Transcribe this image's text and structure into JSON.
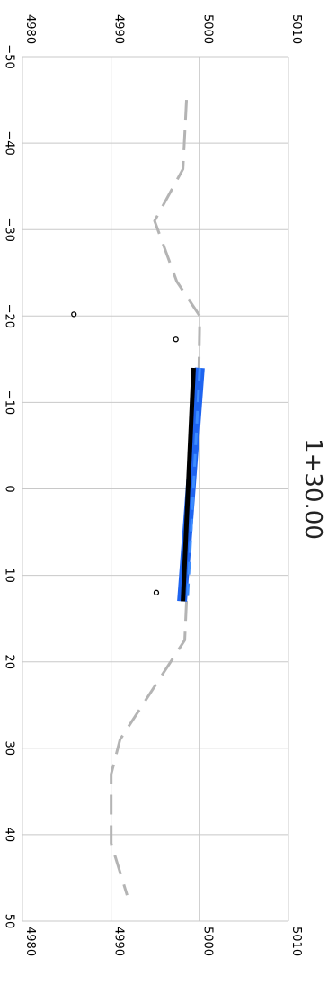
{
  "chart_data": {
    "type": "line",
    "title": "1+30.00",
    "xlabel": "",
    "ylabel": "",
    "xlim": [
      -50,
      50
    ],
    "ylim": [
      4980,
      5010
    ],
    "grid": true,
    "x_ticks": [
      "−50",
      "−40",
      "−30",
      "−20",
      "−10",
      "0",
      "10",
      "20",
      "30",
      "40",
      "50"
    ],
    "y_ticks": [
      "4980",
      "4990",
      "5000",
      "5010"
    ],
    "series": [
      {
        "style": "dashed",
        "color": "#b4b4b4",
        "points": [
          [
            -45,
            4998.5
          ],
          [
            -37,
            4998.1
          ],
          [
            -31,
            4994.9
          ],
          [
            -24,
            4997.4
          ],
          [
            -20,
            5000.0
          ],
          [
            -14,
            4999.9
          ],
          [
            -4,
            4999.0
          ],
          [
            7,
            4998.5
          ],
          [
            13,
            4998.5
          ],
          [
            17.5,
            4998.3
          ],
          [
            29,
            4991.0
          ],
          [
            33,
            4990.0
          ],
          [
            41,
            4990.0
          ],
          [
            47,
            4991.8
          ]
        ]
      },
      {
        "style": "solid",
        "color": "#1e64f0",
        "points": [
          [
            -14,
            5000.0
          ],
          [
            13,
            4998.0
          ]
        ]
      },
      {
        "style": "solid",
        "color": "#000000",
        "points": [
          [
            -14,
            4999.3
          ],
          [
            13,
            4998.1
          ]
        ]
      },
      {
        "style": "dashed",
        "color": "#3c8cff",
        "points": [
          [
            -14,
            5000.0
          ],
          [
            13,
            4998.6
          ]
        ]
      }
    ],
    "markers": [
      {
        "x": -20.2,
        "y": 4985.8
      },
      {
        "x": -17.3,
        "y": 4997.3
      },
      {
        "x": 12.0,
        "y": 4995.1
      }
    ]
  }
}
